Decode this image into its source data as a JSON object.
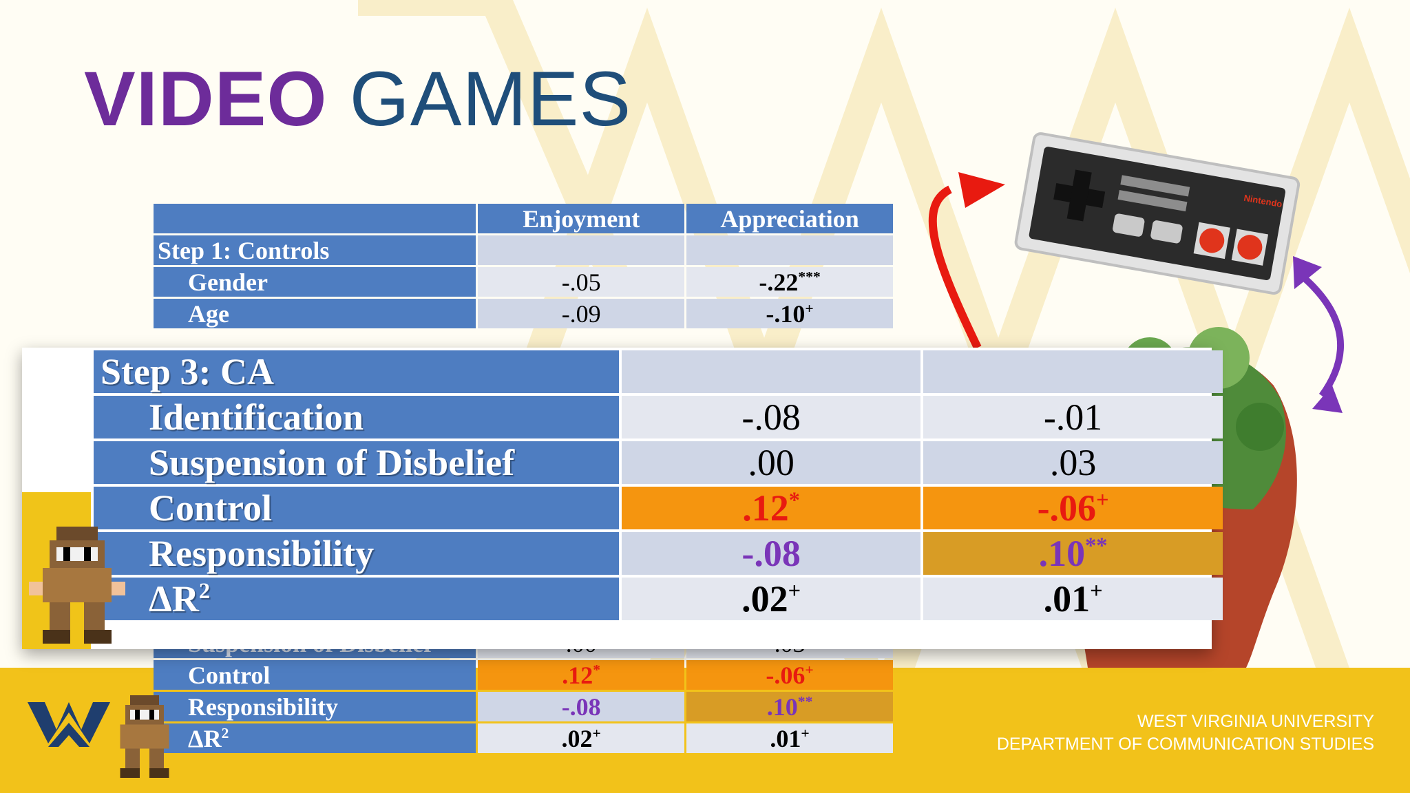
{
  "slide": {
    "title_bold": "VIDEO",
    "title_rest": "GAMES"
  },
  "table_main": {
    "headers": [
      "Enjoyment",
      "Appreciation"
    ],
    "rows": [
      {
        "label": "Step 1: Controls",
        "enjoyment": "",
        "appreciation": ""
      },
      {
        "label": "Gender",
        "enjoyment": "-.05",
        "appreciation": "-.22",
        "app_sup": "***"
      },
      {
        "label": "Age",
        "enjoyment": "-.09",
        "appreciation": "-.10",
        "app_sup": "+"
      },
      {
        "label": "Suspension of Disbelief",
        "enjoyment": ".00",
        "appreciation": ".03"
      },
      {
        "label": "Control",
        "enjoyment": ".12",
        "enj_sup": "*",
        "appreciation": "-.06",
        "app_sup": "+"
      },
      {
        "label": "Responsibility",
        "enjoyment": "-.08",
        "appreciation": ".10",
        "app_sup": "**"
      },
      {
        "label": "ΔR",
        "label_sup": "2",
        "enjoyment": ".02",
        "enj_sup": "+",
        "appreciation": ".01",
        "app_sup": "+"
      }
    ]
  },
  "table_zoom": {
    "rows": [
      {
        "label": "Step 3: CA",
        "enjoyment": "",
        "appreciation": ""
      },
      {
        "label": "Identification",
        "enjoyment": "-.08",
        "appreciation": "-.01"
      },
      {
        "label": "Suspension of Disbelief",
        "enjoyment": ".00",
        "appreciation": ".03"
      },
      {
        "label": "Control",
        "enjoyment": ".12",
        "enj_sup": "*",
        "appreciation": "-.06",
        "app_sup": "+"
      },
      {
        "label": "Responsibility",
        "enjoyment": "-.08",
        "appreciation": ".10",
        "app_sup": "**"
      },
      {
        "label": "ΔR",
        "label_sup": "2",
        "enjoyment": ".02",
        "enj_sup": "+",
        "appreciation": ".01",
        "app_sup": "+"
      }
    ]
  },
  "footer": {
    "line1": "WEST VIRGINIA UNIVERSITY",
    "line2": "DEPARTMENT OF COMMUNICATION STUDIES"
  },
  "controller": {
    "brand": "Nintendo"
  },
  "colors": {
    "purple": "#6d2c9a",
    "navy": "#1f4e7a",
    "table_blue": "#4e7dc1",
    "orange": "#f5950f",
    "gold": "#d89c25",
    "yellow": "#f2c21a"
  }
}
